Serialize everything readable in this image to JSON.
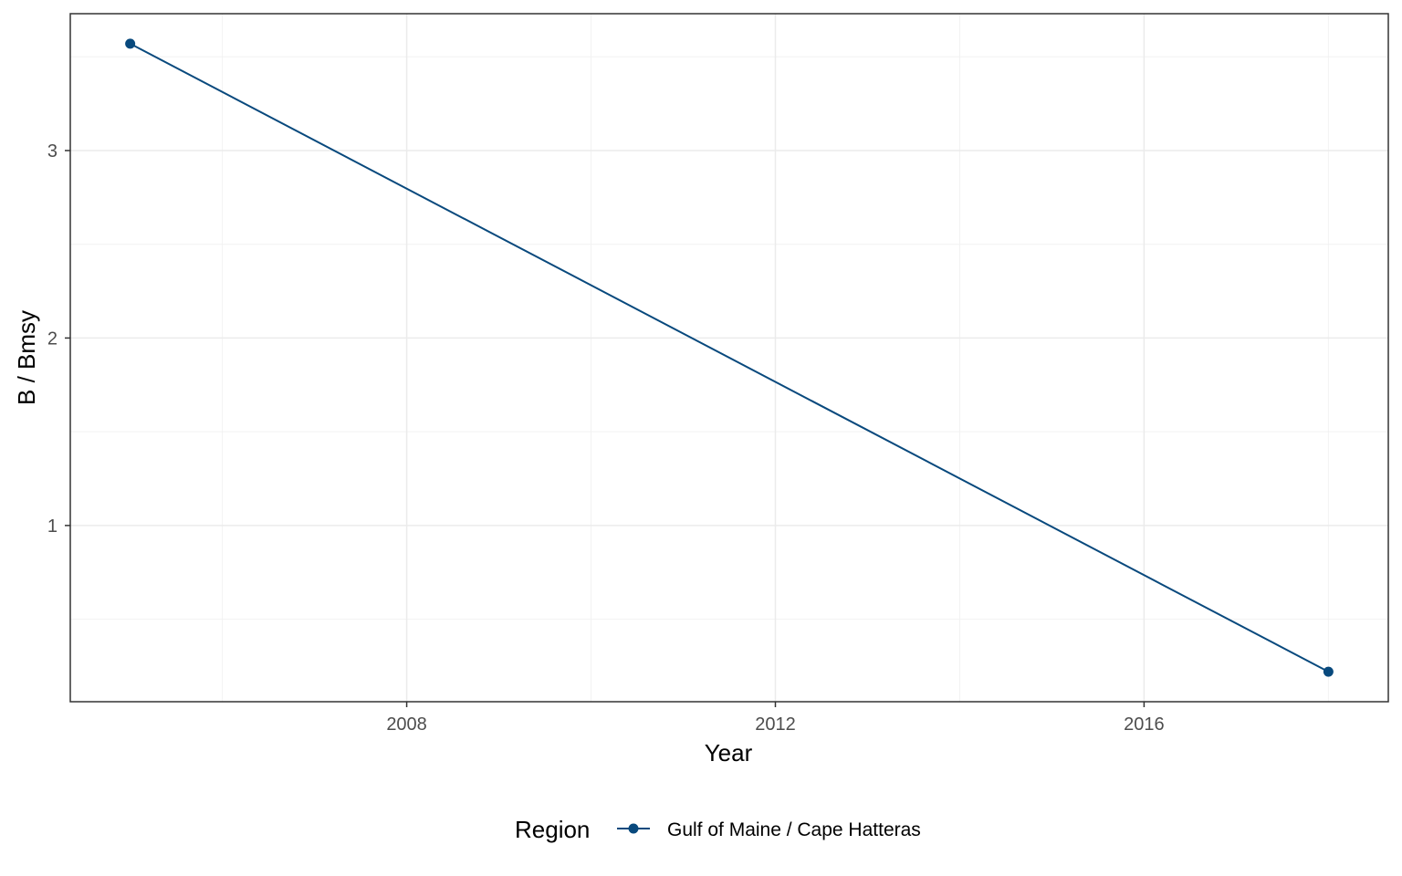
{
  "chart_data": {
    "type": "line",
    "x": [
      2005,
      2018
    ],
    "series": [
      {
        "name": "Gulf of Maine / Cape Hatteras",
        "values": [
          3.57,
          0.22
        ],
        "color": "#08497d"
      }
    ],
    "xlabel": "Year",
    "ylabel": "B / Bmsy",
    "x_ticks": [
      2008,
      2012,
      2016
    ],
    "x_tick_labels": [
      "2008",
      "2012",
      "2016"
    ],
    "y_ticks": [
      1,
      2,
      3
    ],
    "y_tick_labels": [
      "1",
      "2",
      "3"
    ],
    "xlim": [
      2004.35,
      2018.65
    ],
    "ylim": [
      0.06,
      3.73
    ],
    "grid": true,
    "legend": {
      "title": "Region",
      "position": "bottom"
    }
  }
}
